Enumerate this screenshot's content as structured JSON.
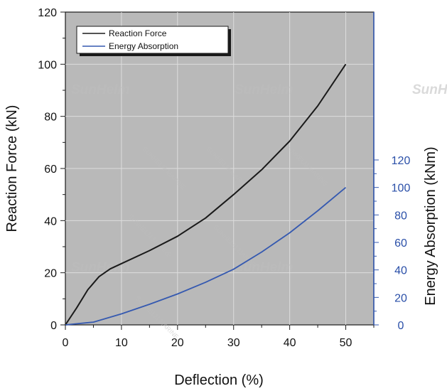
{
  "chart_data": {
    "type": "line",
    "xlabel": "Deflection (%)",
    "ylabel": "Reaction Force (kN)",
    "y2label": "Energy Absorption (kNm)",
    "xlim": [
      0,
      55
    ],
    "ylim": [
      0,
      120
    ],
    "y2lim": [
      0,
      120
    ],
    "x_ticks": [
      0,
      10,
      20,
      30,
      40,
      50
    ],
    "y_ticks": [
      0,
      20,
      40,
      60,
      80,
      100,
      120
    ],
    "y2_ticks": [
      0,
      20,
      40,
      60,
      80,
      100,
      120
    ],
    "grid": true,
    "legend_position": "top-left",
    "series": [
      {
        "name": "Reaction Force",
        "axis": "left",
        "color": "#1a1a1a",
        "x": [
          0,
          2,
          4,
          6,
          8,
          10,
          15,
          20,
          25,
          30,
          35,
          40,
          45,
          50
        ],
        "y": [
          0,
          6.5,
          13.5,
          18.5,
          21.5,
          23.5,
          28.5,
          34,
          41,
          50,
          59.5,
          70.5,
          84,
          100
        ]
      },
      {
        "name": "Energy Absorption",
        "axis": "right",
        "color": "#3559b0",
        "x": [
          0,
          5,
          10,
          15,
          20,
          25,
          30,
          35,
          40,
          45,
          50
        ],
        "y": [
          0,
          2,
          8,
          15,
          22.5,
          31,
          40.5,
          53,
          67,
          83,
          100
        ]
      }
    ],
    "watermarks": [
      "SunHelm",
      "SUNHELM MARINE"
    ]
  }
}
